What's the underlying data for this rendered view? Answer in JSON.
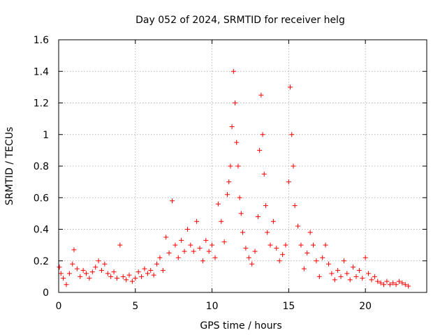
{
  "chart_data": {
    "type": "scatter",
    "title": "Day 052 of 2024, SRMTID for receiver helg",
    "xlabel": "GPS time / hours",
    "ylabel": "SRMTID / TECUs",
    "xlim": [
      0,
      24
    ],
    "ylim": [
      0,
      1.6
    ],
    "x_ticks": [
      0,
      5,
      10,
      15,
      20
    ],
    "x_tick_labels": [
      "0",
      "5",
      "10",
      "15",
      "20"
    ],
    "y_ticks": [
      0,
      0.2,
      0.4,
      0.6,
      0.8,
      1.0,
      1.2,
      1.4,
      1.6
    ],
    "y_tick_labels": [
      "0",
      "0.2",
      "0.4",
      "0.6",
      "0.8",
      "1",
      "1.2",
      "1.4",
      "1.6"
    ],
    "grid": true,
    "marker": "+",
    "series_color": "#ff0000",
    "series": [
      {
        "name": "SRMTID",
        "x": [
          0.05,
          0.15,
          0.3,
          0.5,
          0.7,
          0.9,
          1.0,
          1.2,
          1.4,
          1.6,
          1.8,
          2.0,
          2.2,
          2.4,
          2.6,
          2.8,
          3.0,
          3.2,
          3.4,
          3.6,
          3.8,
          4.0,
          4.2,
          4.4,
          4.6,
          4.8,
          5.0,
          5.2,
          5.4,
          5.6,
          5.8,
          6.0,
          6.2,
          6.4,
          6.6,
          6.8,
          7.0,
          7.2,
          7.4,
          7.6,
          7.8,
          8.0,
          8.2,
          8.4,
          8.6,
          8.8,
          9.0,
          9.2,
          9.4,
          9.6,
          9.8,
          10.0,
          10.2,
          10.4,
          10.6,
          10.8,
          11.0,
          11.1,
          11.2,
          11.3,
          11.4,
          11.5,
          11.6,
          11.7,
          11.8,
          11.9,
          12.0,
          12.2,
          12.4,
          12.6,
          12.8,
          13.0,
          13.1,
          13.2,
          13.3,
          13.4,
          13.5,
          13.6,
          13.8,
          14.0,
          14.2,
          14.4,
          14.6,
          14.8,
          15.0,
          15.1,
          15.2,
          15.3,
          15.4,
          15.6,
          15.8,
          16.0,
          16.2,
          16.4,
          16.6,
          16.8,
          17.0,
          17.2,
          17.4,
          17.6,
          17.8,
          18.0,
          18.2,
          18.4,
          18.6,
          18.8,
          19.0,
          19.2,
          19.4,
          19.6,
          19.8,
          20.0,
          20.2,
          20.4,
          20.6,
          20.8,
          21.0,
          21.2,
          21.4,
          21.6,
          21.8,
          22.0,
          22.2,
          22.4,
          22.6,
          22.8
        ],
        "values": [
          0.16,
          0.12,
          0.09,
          0.05,
          0.12,
          0.18,
          0.27,
          0.15,
          0.1,
          0.14,
          0.12,
          0.09,
          0.13,
          0.16,
          0.2,
          0.14,
          0.18,
          0.12,
          0.1,
          0.13,
          0.09,
          0.3,
          0.1,
          0.08,
          0.11,
          0.07,
          0.09,
          0.13,
          0.1,
          0.15,
          0.12,
          0.14,
          0.11,
          0.18,
          0.22,
          0.14,
          0.35,
          0.25,
          0.58,
          0.3,
          0.22,
          0.33,
          0.26,
          0.4,
          0.3,
          0.26,
          0.45,
          0.28,
          0.2,
          0.33,
          0.26,
          0.3,
          0.22,
          0.56,
          0.45,
          0.32,
          0.62,
          0.7,
          0.8,
          1.05,
          1.4,
          1.2,
          0.95,
          0.8,
          0.6,
          0.5,
          0.38,
          0.28,
          0.22,
          0.18,
          0.26,
          0.48,
          0.9,
          1.25,
          1.0,
          0.75,
          0.55,
          0.38,
          0.3,
          0.45,
          0.28,
          0.2,
          0.24,
          0.3,
          0.7,
          1.3,
          1.0,
          0.8,
          0.55,
          0.42,
          0.3,
          0.15,
          0.25,
          0.38,
          0.3,
          0.2,
          0.1,
          0.22,
          0.3,
          0.18,
          0.12,
          0.08,
          0.14,
          0.1,
          0.2,
          0.12,
          0.08,
          0.16,
          0.1,
          0.14,
          0.09,
          0.22,
          0.12,
          0.08,
          0.1,
          0.07,
          0.06,
          0.05,
          0.07,
          0.05,
          0.06,
          0.05,
          0.07,
          0.06,
          0.05,
          0.04
        ]
      }
    ]
  }
}
